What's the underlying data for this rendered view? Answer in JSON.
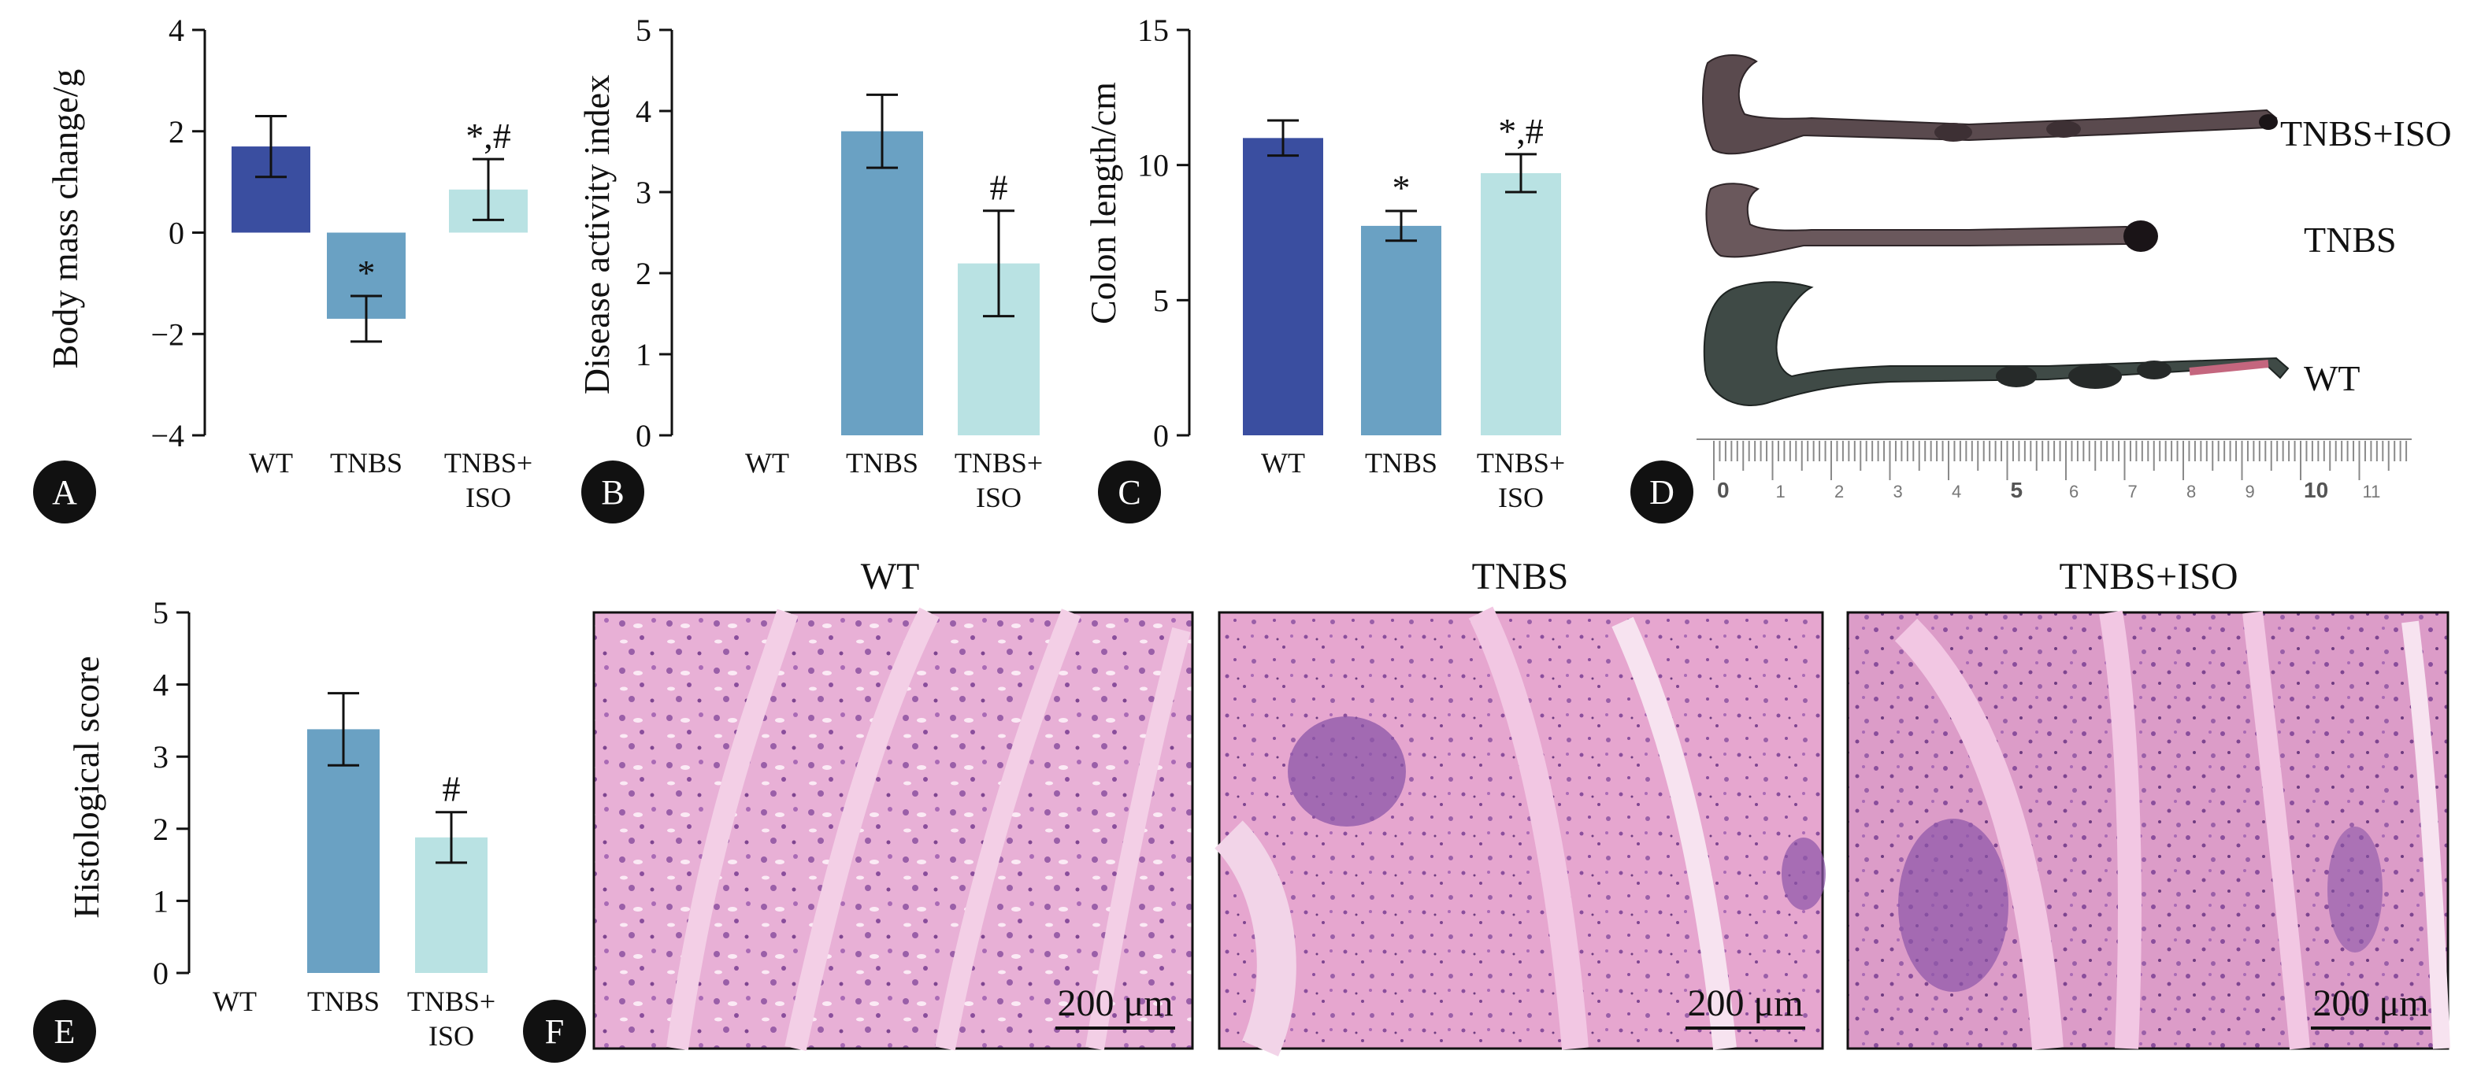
{
  "chart_data": [
    {
      "type": "bar",
      "panel": "A",
      "categories": [
        [
          "WT"
        ],
        [
          "TNBS"
        ],
        [
          "TNBS+",
          "ISO"
        ]
      ],
      "ylabel": "Body mass change/g",
      "ylim": [
        -4,
        4
      ],
      "yticks": [
        "4",
        "2",
        "0",
        "−2",
        "−4"
      ],
      "yticks_values": [
        4,
        2,
        0,
        -2,
        -4
      ],
      "values": [
        1.7,
        -1.7,
        0.85
      ],
      "errors": [
        0.6,
        0.45,
        0.6
      ],
      "annotations": [
        "",
        "*",
        "*,#"
      ]
    },
    {
      "type": "bar",
      "panel": "B",
      "categories": [
        [
          "WT"
        ],
        [
          "TNBS"
        ],
        [
          "TNBS+",
          "ISO"
        ]
      ],
      "ylabel": "Disease activity index",
      "ylim": [
        0,
        5
      ],
      "yticks": [
        "5",
        "4",
        "3",
        "2",
        "1",
        "0"
      ],
      "yticks_values": [
        5,
        4,
        3,
        2,
        1,
        0
      ],
      "values": [
        0,
        3.75,
        2.12
      ],
      "errors": [
        0,
        0.45,
        0.65
      ],
      "annotations": [
        "",
        "",
        "#"
      ]
    },
    {
      "type": "bar",
      "panel": "C",
      "categories": [
        [
          "WT"
        ],
        [
          "TNBS"
        ],
        [
          "TNBS+",
          "ISO"
        ]
      ],
      "ylabel": "Colon length/cm",
      "ylim": [
        0,
        15
      ],
      "yticks": [
        "15",
        "10",
        "5",
        "0"
      ],
      "yticks_values": [
        15,
        10,
        5,
        0
      ],
      "values": [
        11.0,
        7.75,
        9.7
      ],
      "errors": [
        0.65,
        0.55,
        0.7
      ],
      "annotations": [
        "",
        "*",
        "*,#"
      ]
    },
    {
      "type": "bar",
      "panel": "E",
      "categories": [
        [
          "WT"
        ],
        [
          "TNBS"
        ],
        [
          "TNBS+",
          "ISO"
        ]
      ],
      "ylabel": "Histological score",
      "ylim": [
        0,
        5
      ],
      "yticks": [
        "5",
        "4",
        "3",
        "2",
        "1",
        "0"
      ],
      "yticks_values": [
        5,
        4,
        3,
        2,
        1,
        0
      ],
      "values": [
        0,
        3.38,
        1.88
      ],
      "errors": [
        0,
        0.5,
        0.35
      ],
      "annotations": [
        "",
        "",
        "#"
      ]
    }
  ],
  "colors": {
    "wt": "#3a4ea0",
    "tnbs": "#6aa1c3",
    "tnbs_iso": "#b9e2e3",
    "panel_badge": "#111111",
    "he_stain": "#e0a8d0"
  },
  "panel_letters": {
    "A": "A",
    "B": "B",
    "C": "C",
    "D": "D",
    "E": "E",
    "F": "F"
  },
  "colon_photo": {
    "labels": [
      "TNBS+ISO",
      "TNBS",
      "WT"
    ],
    "ruler_numbers": [
      "0",
      "1",
      "2",
      "3",
      "4",
      "5",
      "6",
      "7",
      "8",
      "9",
      "10",
      "11"
    ]
  },
  "histology": {
    "titles": [
      "WT",
      "TNBS",
      "TNBS+ISO"
    ],
    "scale_bar": "200 μm"
  }
}
